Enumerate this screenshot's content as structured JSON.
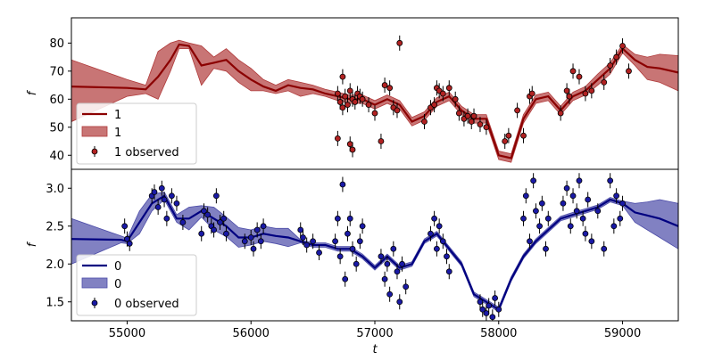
{
  "chart_data": [
    {
      "type": "line",
      "panel": "top",
      "ylabel": "f",
      "xlabel": "",
      "xlim": [
        54550,
        59450
      ],
      "ylim": [
        35,
        89
      ],
      "xticks": [],
      "yticks": [
        40,
        50,
        60,
        70,
        80
      ],
      "grid": false,
      "legend_position": "lower-left",
      "colors": {
        "line": "#8b0000",
        "band": "#b03a3a",
        "point": "#b22222"
      },
      "legend": {
        "line": "1",
        "band": "1",
        "points": "1 observed"
      },
      "series": [
        {
          "name": "1",
          "kind": "model",
          "x": [
            54550,
            55000,
            55150,
            55250,
            55350,
            55420,
            55500,
            55600,
            55700,
            55800,
            55900,
            56000,
            56100,
            56200,
            56300,
            56400,
            56500,
            56600,
            56700,
            56800,
            56900,
            57000,
            57100,
            57200,
            57300,
            57400,
            57500,
            57600,
            57700,
            57800,
            57900,
            58000,
            58100,
            58200,
            58300,
            58400,
            58500,
            58600,
            58700,
            58800,
            58900,
            59000,
            59100,
            59200,
            59300,
            59450
          ],
          "y": [
            64.5,
            64.0,
            63.5,
            68,
            74,
            79.5,
            79,
            72,
            73,
            74,
            70,
            67,
            64.5,
            63,
            65,
            64,
            63.5,
            62,
            61,
            60,
            60,
            58,
            60,
            58,
            52,
            54,
            59,
            61,
            56,
            53,
            53,
            40,
            39,
            53,
            60,
            61,
            56,
            61,
            63,
            67,
            71,
            78,
            74,
            71.5,
            71,
            69.5
          ],
          "band_lo": [
            52,
            61,
            62,
            60,
            70,
            78,
            78,
            65,
            71,
            70,
            66,
            63,
            63,
            62,
            63,
            61,
            62,
            61,
            59.5,
            58.5,
            58.5,
            56.5,
            58.5,
            56.5,
            50.5,
            52.5,
            57.5,
            59.5,
            54.5,
            51.5,
            51.5,
            38.5,
            37.5,
            51.5,
            58.5,
            59.5,
            54.5,
            59.5,
            61.5,
            65,
            69,
            76.5,
            72,
            67,
            66,
            63
          ],
          "band_hi": [
            74,
            67,
            65,
            77,
            80,
            81,
            80,
            79,
            75,
            78,
            74,
            71,
            67,
            65,
            67,
            66,
            65,
            63.5,
            62.5,
            61.5,
            61.5,
            59.5,
            61.5,
            59.5,
            53.5,
            55.5,
            60.5,
            62.5,
            57.5,
            54.5,
            54.5,
            41.5,
            40.5,
            54.5,
            61.5,
            62.5,
            57.5,
            62.5,
            64.5,
            69,
            73,
            79.5,
            76,
            75,
            76,
            75.5
          ]
        },
        {
          "name": "1 observed",
          "kind": "observed",
          "points": [
            [
              56700,
              62
            ],
            [
              56720,
              59
            ],
            [
              56740,
              57
            ],
            [
              56760,
              61
            ],
            [
              56780,
              58
            ],
            [
              56800,
              63
            ],
            [
              56820,
              60
            ],
            [
              56840,
              59
            ],
            [
              56860,
              62
            ],
            [
              56880,
              61
            ],
            [
              56700,
              46
            ],
            [
              56800,
              44
            ],
            [
              56820,
              42
            ],
            [
              56740,
              68
            ],
            [
              56900,
              60
            ],
            [
              56950,
              58
            ],
            [
              57000,
              55
            ],
            [
              57050,
              45
            ],
            [
              57080,
              65
            ],
            [
              57120,
              64
            ],
            [
              57150,
              57
            ],
            [
              57180,
              56
            ],
            [
              57200,
              80
            ],
            [
              57400,
              52
            ],
            [
              57450,
              57
            ],
            [
              57480,
              58
            ],
            [
              57500,
              64
            ],
            [
              57520,
              63
            ],
            [
              57550,
              62
            ],
            [
              57600,
              64
            ],
            [
              57650,
              60
            ],
            [
              57680,
              55
            ],
            [
              57720,
              53
            ],
            [
              57750,
              54
            ],
            [
              57780,
              52
            ],
            [
              57800,
              54
            ],
            [
              57850,
              51
            ],
            [
              57900,
              50
            ],
            [
              58050,
              45
            ],
            [
              58080,
              47
            ],
            [
              58150,
              56
            ],
            [
              58200,
              47
            ],
            [
              58250,
              61
            ],
            [
              58270,
              62
            ],
            [
              58500,
              55
            ],
            [
              58550,
              63
            ],
            [
              58570,
              61
            ],
            [
              58600,
              70
            ],
            [
              58650,
              68
            ],
            [
              58700,
              62
            ],
            [
              58750,
              63
            ],
            [
              58850,
              66
            ],
            [
              58900,
              72
            ],
            [
              58950,
              75
            ],
            [
              59000,
              79
            ],
            [
              59050,
              70
            ]
          ]
        }
      ]
    },
    {
      "type": "line",
      "panel": "bottom",
      "ylabel": "f",
      "xlabel": "t",
      "xlim": [
        54550,
        59450
      ],
      "ylim": [
        1.25,
        3.25
      ],
      "xticks": [
        55000,
        56000,
        57000,
        58000,
        59000
      ],
      "yticks": [
        1.5,
        2.0,
        2.5,
        3.0
      ],
      "grid": false,
      "legend_position": "lower-left",
      "colors": {
        "line": "#000080",
        "band": "#4c4ca8",
        "point": "#1a1aa6"
      },
      "legend": {
        "line": "0",
        "band": "0",
        "points": "0 observed"
      },
      "series": [
        {
          "name": "0",
          "kind": "model",
          "x": [
            54550,
            54950,
            55000,
            55100,
            55200,
            55300,
            55400,
            55500,
            55600,
            55700,
            55800,
            55900,
            56000,
            56100,
            56200,
            56300,
            56400,
            56500,
            56600,
            56700,
            56800,
            56900,
            57000,
            57100,
            57200,
            57300,
            57400,
            57500,
            57600,
            57700,
            57800,
            57900,
            58000,
            58100,
            58200,
            58300,
            58400,
            58500,
            58600,
            58700,
            58800,
            58900,
            59000,
            59100,
            59200,
            59300,
            59450
          ],
          "y": [
            2.33,
            2.32,
            2.3,
            2.55,
            2.8,
            2.9,
            2.6,
            2.6,
            2.7,
            2.6,
            2.5,
            2.35,
            2.35,
            2.4,
            2.37,
            2.35,
            2.3,
            2.25,
            2.25,
            2.2,
            2.2,
            2.1,
            1.95,
            2.1,
            1.95,
            2.0,
            2.3,
            2.4,
            2.2,
            2.0,
            1.6,
            1.5,
            1.4,
            1.8,
            2.1,
            2.3,
            2.45,
            2.6,
            2.65,
            2.7,
            2.75,
            2.85,
            2.8,
            2.68,
            2.64,
            2.6,
            2.5
          ],
          "band_lo": [
            2.0,
            2.28,
            2.27,
            2.4,
            2.7,
            2.85,
            2.55,
            2.45,
            2.62,
            2.45,
            2.36,
            2.22,
            2.25,
            2.3,
            2.27,
            2.23,
            2.28,
            2.22,
            2.22,
            2.17,
            2.17,
            2.07,
            1.92,
            2.07,
            1.92,
            1.97,
            2.27,
            2.37,
            2.17,
            1.97,
            1.57,
            1.47,
            1.37,
            1.77,
            2.07,
            2.27,
            2.42,
            2.57,
            2.62,
            2.67,
            2.72,
            2.82,
            2.77,
            2.55,
            2.45,
            2.35,
            2.2
          ],
          "band_hi": [
            2.6,
            2.37,
            2.34,
            2.7,
            2.92,
            2.95,
            2.65,
            2.75,
            2.77,
            2.75,
            2.62,
            2.48,
            2.45,
            2.5,
            2.47,
            2.47,
            2.32,
            2.28,
            2.28,
            2.23,
            2.23,
            2.13,
            1.98,
            2.13,
            1.98,
            2.03,
            2.33,
            2.43,
            2.23,
            2.03,
            1.63,
            1.53,
            1.43,
            1.83,
            2.13,
            2.33,
            2.48,
            2.63,
            2.68,
            2.73,
            2.78,
            2.88,
            2.83,
            2.8,
            2.82,
            2.85,
            2.8
          ]
        },
        {
          "name": "0 observed",
          "kind": "observed",
          "points": [
            [
              54980,
              2.5
            ],
            [
              55000,
              2.33
            ],
            [
              55020,
              2.27
            ],
            [
              55200,
              2.9
            ],
            [
              55220,
              2.95
            ],
            [
              55250,
              2.75
            ],
            [
              55280,
              3.0
            ],
            [
              55300,
              2.85
            ],
            [
              55320,
              2.6
            ],
            [
              55360,
              2.9
            ],
            [
              55400,
              2.8
            ],
            [
              55450,
              2.55
            ],
            [
              55600,
              2.4
            ],
            [
              55620,
              2.7
            ],
            [
              55650,
              2.65
            ],
            [
              55680,
              2.5
            ],
            [
              55700,
              2.45
            ],
            [
              55720,
              2.9
            ],
            [
              55750,
              2.55
            ],
            [
              55780,
              2.6
            ],
            [
              55800,
              2.4
            ],
            [
              55950,
              2.3
            ],
            [
              56000,
              2.35
            ],
            [
              56020,
              2.2
            ],
            [
              56050,
              2.45
            ],
            [
              56080,
              2.3
            ],
            [
              56100,
              2.5
            ],
            [
              56400,
              2.45
            ],
            [
              56420,
              2.35
            ],
            [
              56450,
              2.25
            ],
            [
              56500,
              2.3
            ],
            [
              56550,
              2.15
            ],
            [
              56680,
              2.3
            ],
            [
              56700,
              2.6
            ],
            [
              56720,
              2.1
            ],
            [
              56740,
              3.05
            ],
            [
              56760,
              1.8
            ],
            [
              56780,
              2.4
            ],
            [
              56800,
              2.6
            ],
            [
              56820,
              2.2
            ],
            [
              56850,
              2.0
            ],
            [
              56880,
              2.3
            ],
            [
              56900,
              2.5
            ],
            [
              57050,
              2.1
            ],
            [
              57080,
              1.8
            ],
            [
              57100,
              2.0
            ],
            [
              57120,
              1.6
            ],
            [
              57150,
              2.2
            ],
            [
              57180,
              1.9
            ],
            [
              57200,
              1.5
            ],
            [
              57220,
              2.0
            ],
            [
              57250,
              1.7
            ],
            [
              57450,
              2.4
            ],
            [
              57480,
              2.6
            ],
            [
              57500,
              2.2
            ],
            [
              57520,
              2.5
            ],
            [
              57550,
              2.3
            ],
            [
              57580,
              2.1
            ],
            [
              57600,
              1.9
            ],
            [
              57850,
              1.5
            ],
            [
              57870,
              1.4
            ],
            [
              57900,
              1.35
            ],
            [
              57920,
              1.45
            ],
            [
              57950,
              1.3
            ],
            [
              57970,
              1.55
            ],
            [
              58000,
              1.4
            ],
            [
              58200,
              2.6
            ],
            [
              58220,
              2.9
            ],
            [
              58250,
              2.3
            ],
            [
              58280,
              3.1
            ],
            [
              58300,
              2.7
            ],
            [
              58330,
              2.5
            ],
            [
              58350,
              2.8
            ],
            [
              58380,
              2.2
            ],
            [
              58400,
              2.6
            ],
            [
              58520,
              2.8
            ],
            [
              58550,
              3.0
            ],
            [
              58580,
              2.5
            ],
            [
              58600,
              2.9
            ],
            [
              58630,
              2.7
            ],
            [
              58650,
              3.1
            ],
            [
              58680,
              2.6
            ],
            [
              58700,
              2.4
            ],
            [
              58720,
              2.85
            ],
            [
              58750,
              2.3
            ],
            [
              58800,
              2.7
            ],
            [
              58850,
              2.2
            ],
            [
              58900,
              3.1
            ],
            [
              58930,
              2.5
            ],
            [
              58950,
              2.9
            ],
            [
              58980,
              2.6
            ],
            [
              59000,
              2.8
            ]
          ]
        }
      ]
    }
  ]
}
